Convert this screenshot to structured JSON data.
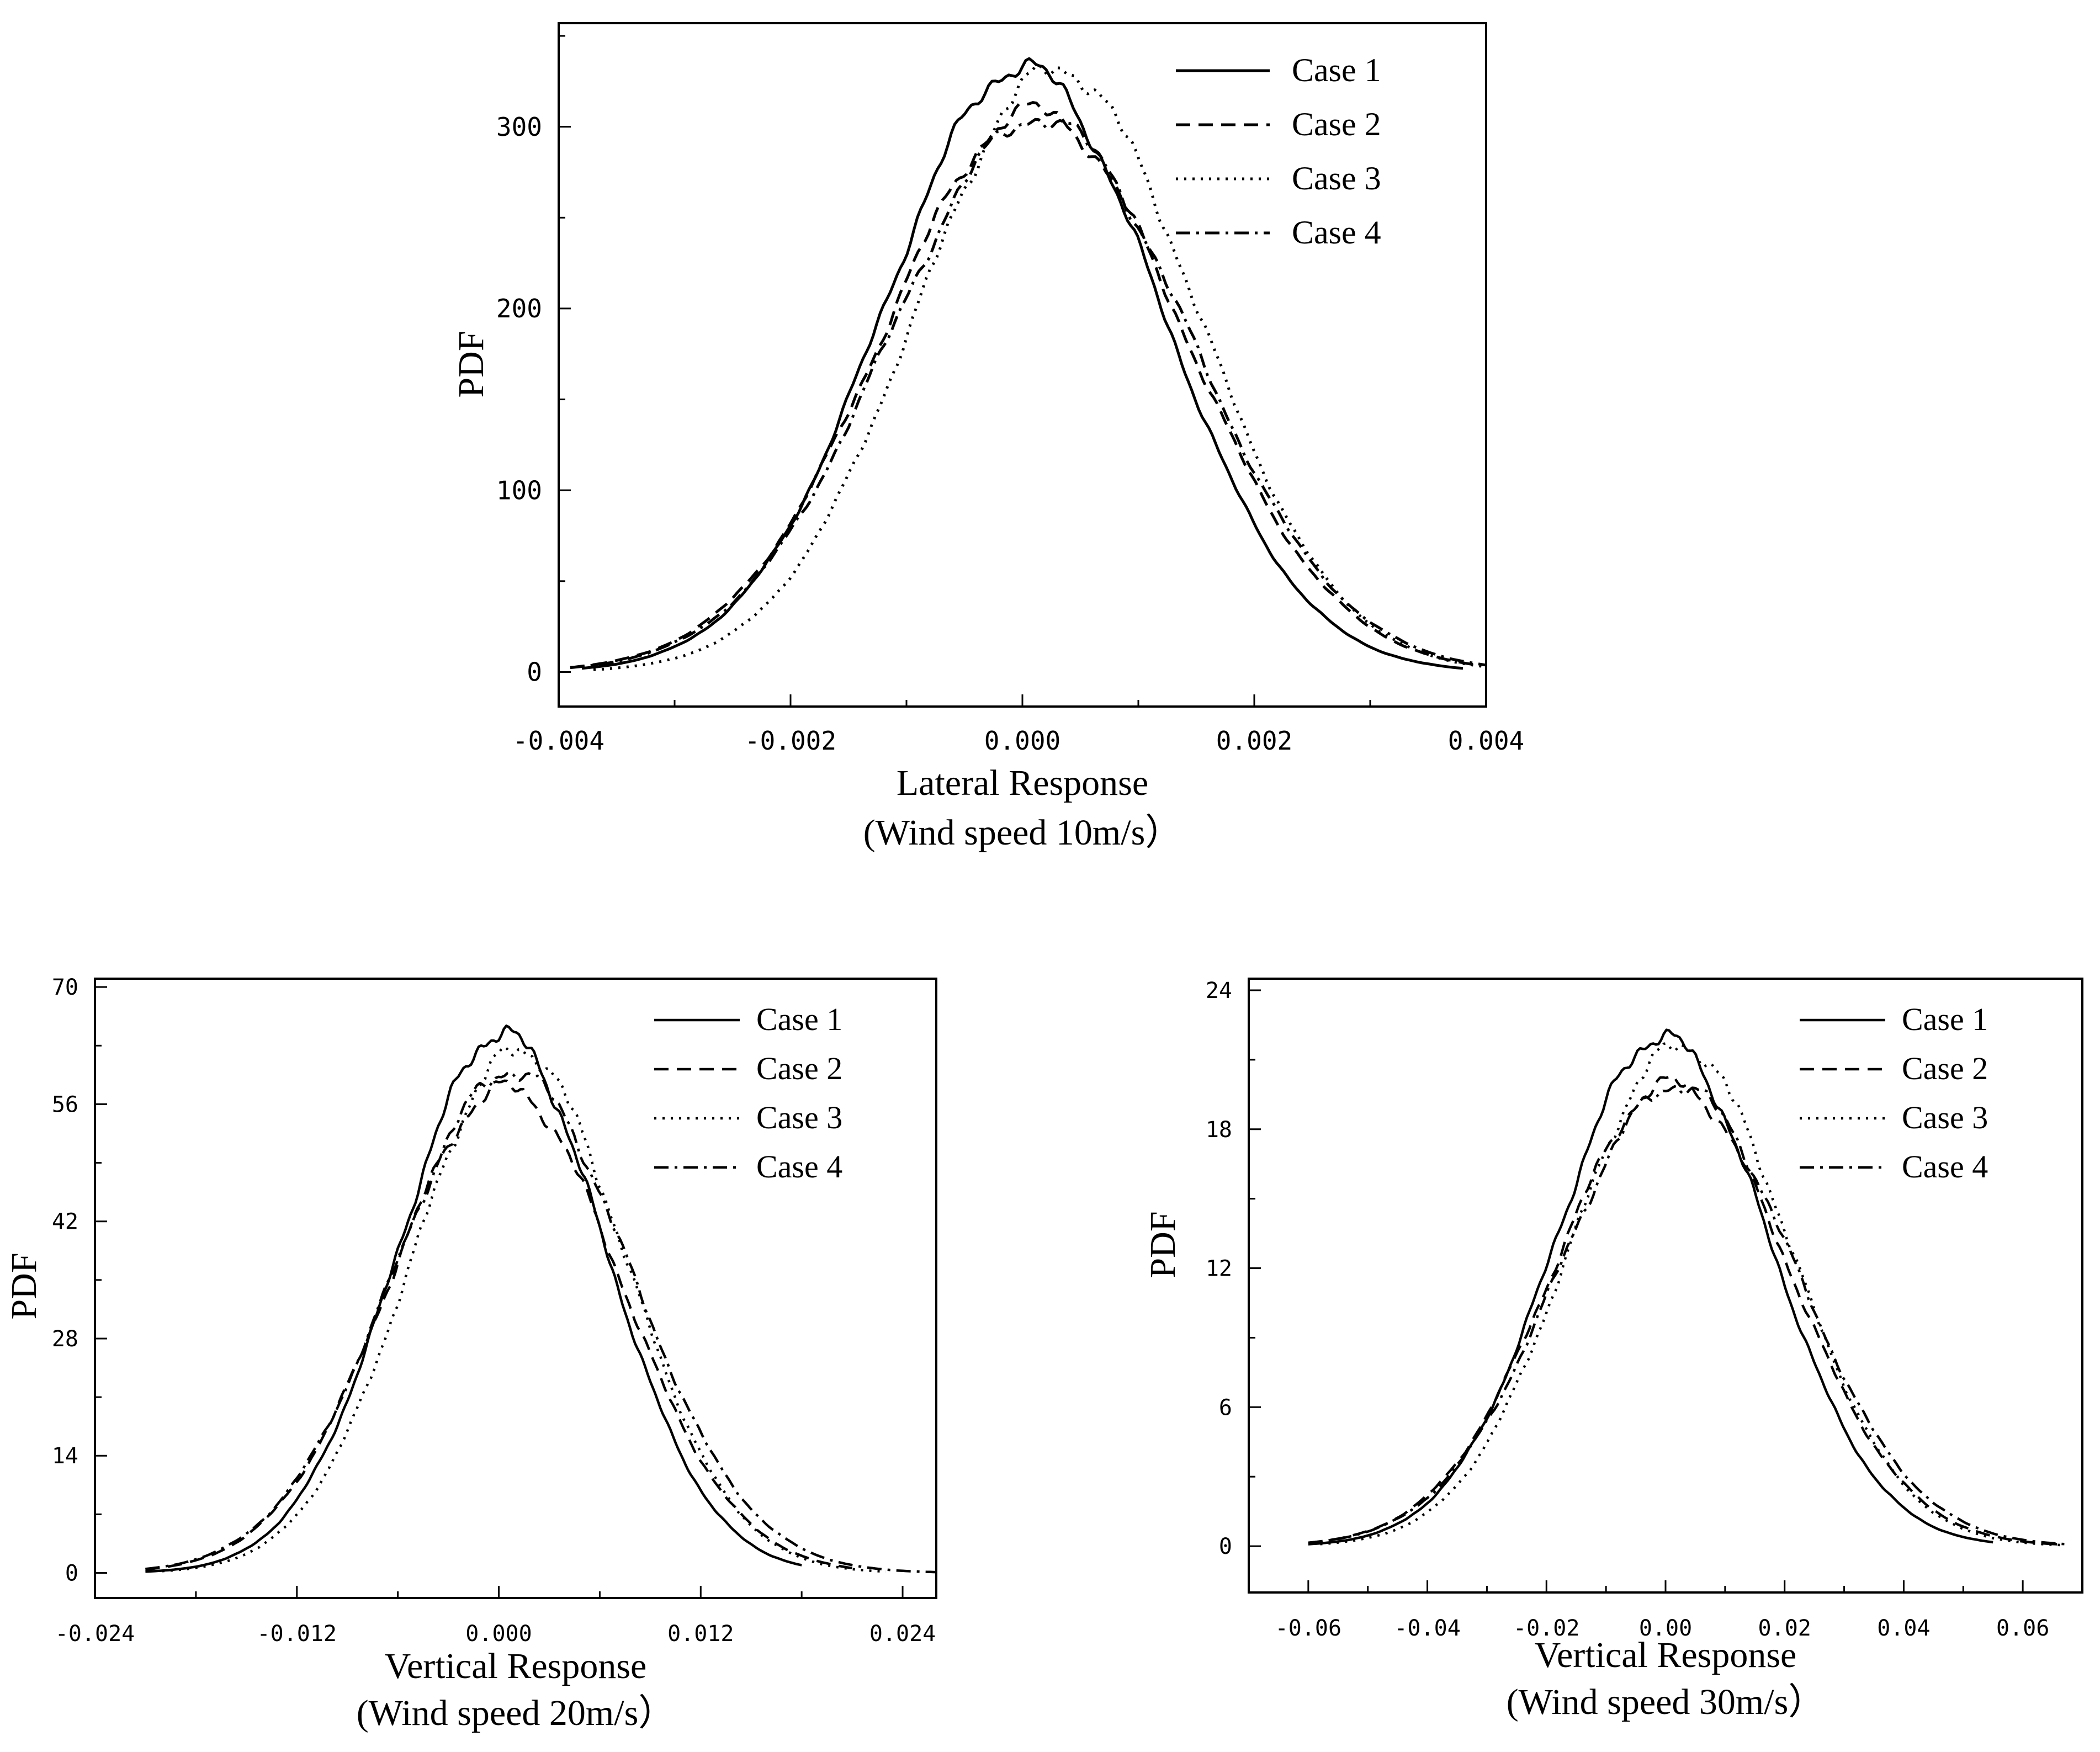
{
  "chart_data": [
    {
      "type": "line",
      "title": "",
      "xlabel": "Lateral Response",
      "subtitle": "(Wind speed 10m/s）",
      "ylabel": "PDF",
      "xlim": [
        -0.004,
        0.004
      ],
      "ylim": [
        -19,
        357
      ],
      "xticks": [
        -0.004,
        -0.002,
        0.0,
        0.002,
        0.004
      ],
      "xtick_labels": [
        "-0.004",
        "-0.002",
        "0.000",
        "0.002",
        "0.004"
      ],
      "yticks": [
        0,
        100,
        200,
        300
      ],
      "ytick_labels": [
        "0",
        "100",
        "200",
        "300"
      ],
      "legend_position": "top-right",
      "series": [
        {
          "name": "Case 1",
          "style": "solid",
          "mean": 0.0,
          "sd": 0.00119,
          "peak": 333,
          "xmin": -0.0038,
          "xmax": 0.0038
        },
        {
          "name": "Case 2",
          "style": "dashed",
          "mean": 0.0001,
          "sd": 0.00129,
          "peak": 309,
          "xmin": -0.0039,
          "xmax": 0.0039
        },
        {
          "name": "Case 3",
          "style": "dotted",
          "mean": 0.0003,
          "sd": 0.0012,
          "peak": 332,
          "xmin": -0.0037,
          "xmax": 0.004
        },
        {
          "name": "Case 4",
          "style": "dashdot",
          "mean": 0.00015,
          "sd": 0.0013,
          "peak": 305,
          "xmin": -0.0039,
          "xmax": 0.004
        }
      ]
    },
    {
      "type": "line",
      "title": "",
      "xlabel": "Vertical Response",
      "subtitle": "(Wind speed 20m/s）",
      "ylabel": "PDF",
      "xlim": [
        -0.024,
        0.026
      ],
      "ylim": [
        -3,
        71
      ],
      "xticks": [
        -0.024,
        -0.012,
        0.0,
        0.012,
        0.024
      ],
      "xtick_labels": [
        "-0.024",
        "-0.012",
        "0.000",
        "0.012",
        "0.024"
      ],
      "yticks": [
        0,
        14,
        28,
        42,
        56,
        70
      ],
      "ytick_labels": [
        "0",
        "14",
        "28",
        "42",
        "56",
        "70"
      ],
      "legend_position": "top-right",
      "series": [
        {
          "name": "Case 1",
          "style": "solid",
          "mean": 0.0002,
          "sd": 0.0061,
          "peak": 64.5,
          "xmin": -0.021,
          "xmax": 0.018
        },
        {
          "name": "Case 2",
          "style": "dashed",
          "mean": 0.0004,
          "sd": 0.0068,
          "peak": 58.0,
          "xmin": -0.021,
          "xmax": 0.021
        },
        {
          "name": "Case 3",
          "style": "dotted",
          "mean": 0.0012,
          "sd": 0.0063,
          "peak": 62.5,
          "xmin": -0.02,
          "xmax": 0.023
        },
        {
          "name": "Case 4",
          "style": "dashdot",
          "mean": 0.0008,
          "sd": 0.007,
          "peak": 60.0,
          "xmin": -0.021,
          "xmax": 0.026
        }
      ]
    },
    {
      "type": "line",
      "title": "",
      "xlabel": "Vertical Response",
      "subtitle": "(Wind speed 30m/s）",
      "ylabel": "PDF",
      "xlim": [
        -0.07,
        0.07
      ],
      "ylim": [
        -2,
        24.5
      ],
      "xticks": [
        -0.06,
        -0.04,
        -0.02,
        0.0,
        0.02,
        0.04,
        0.06
      ],
      "xtick_labels": [
        "-0.06",
        "-0.04",
        "-0.02",
        "0.00",
        "0.02",
        "0.04",
        "0.06"
      ],
      "yticks": [
        0,
        6,
        12,
        18,
        24
      ],
      "ytick_labels": [
        "0",
        "6",
        "12",
        "18",
        "24"
      ],
      "legend_position": "top-right",
      "series": [
        {
          "name": "Case 1",
          "style": "solid",
          "mean": -0.0005,
          "sd": 0.0178,
          "peak": 22.0,
          "xmin": -0.06,
          "xmax": 0.055
        },
        {
          "name": "Case 2",
          "style": "dashed",
          "mean": 0.001,
          "sd": 0.0195,
          "peak": 20.0,
          "xmin": -0.06,
          "xmax": 0.067
        },
        {
          "name": "Case 3",
          "style": "dotted",
          "mean": 0.0025,
          "sd": 0.0183,
          "peak": 21.6,
          "xmin": -0.058,
          "xmax": 0.067
        },
        {
          "name": "Case 4",
          "style": "dashdot",
          "mean": 0.002,
          "sd": 0.0198,
          "peak": 19.9,
          "xmin": -0.06,
          "xmax": 0.067
        }
      ]
    }
  ]
}
